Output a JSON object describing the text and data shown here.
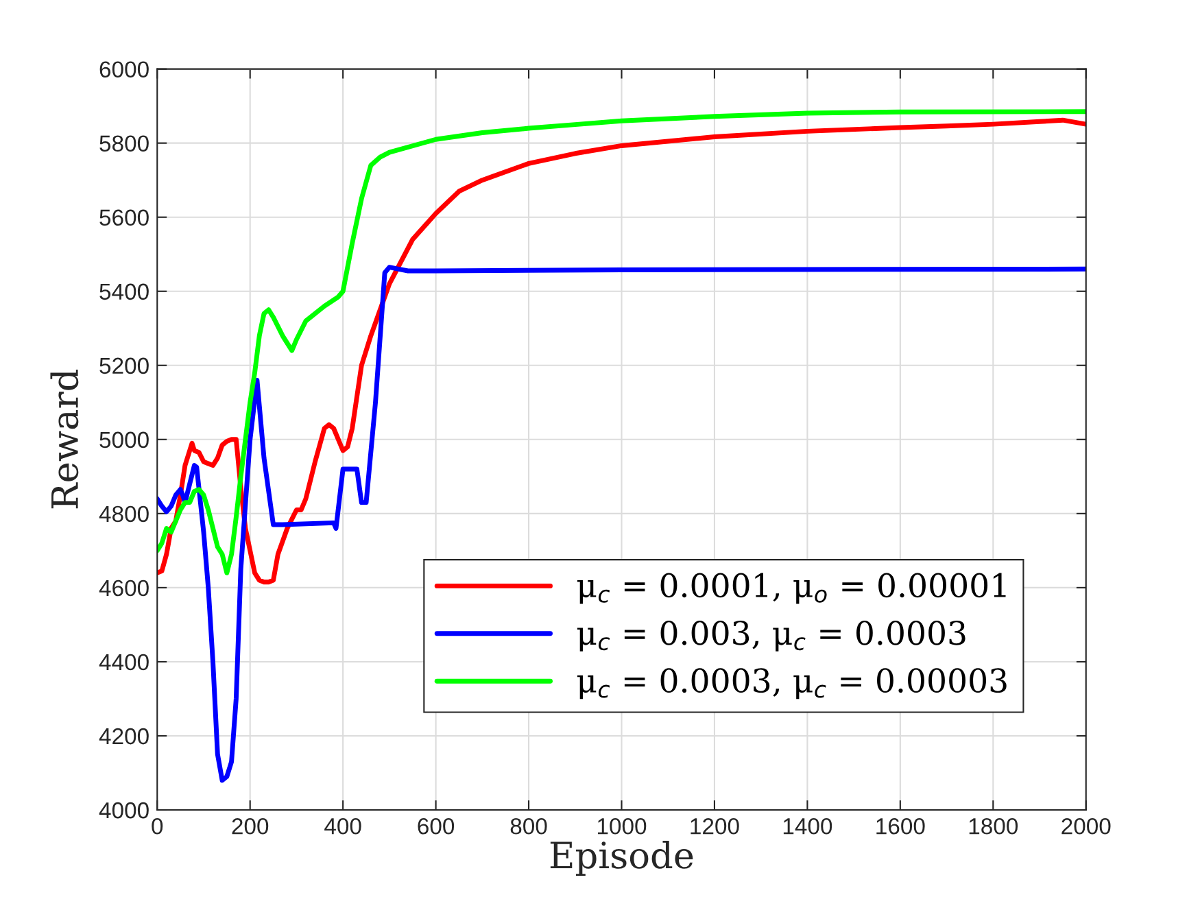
{
  "chart_data": {
    "type": "line",
    "xlabel": "Episode",
    "ylabel": "Reward",
    "xlim": [
      0,
      2000
    ],
    "xticks": [
      0,
      200,
      400,
      600,
      800,
      1000,
      1200,
      1400,
      1600,
      1800,
      2000
    ],
    "ylim": [
      4000,
      6000
    ],
    "yticks": [
      4000,
      4200,
      4400,
      4600,
      4800,
      5000,
      5200,
      5400,
      5600,
      5800,
      6000
    ],
    "grid": true,
    "legend": "bottom right",
    "line_style": "solid",
    "marker": "none",
    "series": [
      {
        "name": "μ$_{c}$ = 0.0001, μ$_{o}$ = 0.00001",
        "color": "#ff0000",
        "x": [
          0,
          10,
          20,
          30,
          40,
          50,
          60,
          70,
          75,
          80,
          90,
          100,
          110,
          120,
          130,
          140,
          150,
          160,
          170,
          180,
          190,
          200,
          210,
          220,
          230,
          240,
          250,
          260,
          280,
          300,
          310,
          320,
          340,
          360,
          370,
          380,
          400,
          410,
          420,
          440,
          460,
          480,
          500,
          550,
          600,
          650,
          700,
          800,
          900,
          1000,
          1200,
          1400,
          1600,
          1700,
          1800,
          1900,
          1950,
          2000
        ],
        "values": [
          4640,
          4645,
          4690,
          4760,
          4780,
          4850,
          4930,
          4970,
          4990,
          4970,
          4965,
          4940,
          4935,
          4930,
          4950,
          4985,
          4995,
          5000,
          5000,
          4870,
          4760,
          4700,
          4640,
          4620,
          4615,
          4615,
          4620,
          4690,
          4760,
          4810,
          4810,
          4840,
          4940,
          5030,
          5040,
          5030,
          4970,
          4980,
          5030,
          5200,
          5280,
          5350,
          5420,
          5540,
          5610,
          5670,
          5700,
          5745,
          5772,
          5793,
          5817,
          5832,
          5842,
          5846,
          5851,
          5858,
          5862,
          5851
        ]
      },
      {
        "name": "μ$_{c}$ = 0.003, μ$_{c}$ = 0.0003",
        "color": "#0000ff",
        "x": [
          0,
          10,
          20,
          30,
          40,
          50,
          55,
          60,
          70,
          80,
          85,
          100,
          110,
          120,
          130,
          140,
          150,
          160,
          170,
          180,
          200,
          215,
          230,
          250,
          270,
          380,
          385,
          400,
          430,
          440,
          450,
          470,
          490,
          500,
          520,
          540,
          600,
          1000,
          2000
        ],
        "values": [
          4840,
          4820,
          4805,
          4820,
          4850,
          4865,
          4850,
          4830,
          4880,
          4930,
          4925,
          4750,
          4600,
          4400,
          4150,
          4080,
          4090,
          4130,
          4300,
          4650,
          5000,
          5160,
          4950,
          4770,
          4770,
          4775,
          4760,
          4920,
          4920,
          4830,
          4830,
          5100,
          5450,
          5465,
          5460,
          5455,
          5455,
          5458,
          5460
        ]
      },
      {
        "name": "μ$_{c}$ = 0.0003, μ$_{c}$ = 0.00003",
        "color": "#00ff00",
        "x": [
          0,
          10,
          20,
          30,
          40,
          50,
          60,
          70,
          80,
          90,
          100,
          110,
          120,
          130,
          140,
          150,
          160,
          170,
          180,
          200,
          210,
          220,
          230,
          240,
          250,
          270,
          290,
          300,
          320,
          360,
          390,
          400,
          420,
          440,
          460,
          480,
          500,
          600,
          700,
          800,
          900,
          1000,
          1200,
          1400,
          1600,
          2000
        ],
        "values": [
          4700,
          4720,
          4760,
          4750,
          4780,
          4810,
          4830,
          4830,
          4860,
          4865,
          4850,
          4810,
          4760,
          4710,
          4690,
          4640,
          4690,
          4790,
          4900,
          5100,
          5180,
          5280,
          5340,
          5350,
          5330,
          5280,
          5240,
          5270,
          5320,
          5360,
          5385,
          5400,
          5530,
          5650,
          5740,
          5762,
          5775,
          5810,
          5828,
          5840,
          5850,
          5860,
          5872,
          5881,
          5884,
          5885
        ]
      }
    ]
  }
}
